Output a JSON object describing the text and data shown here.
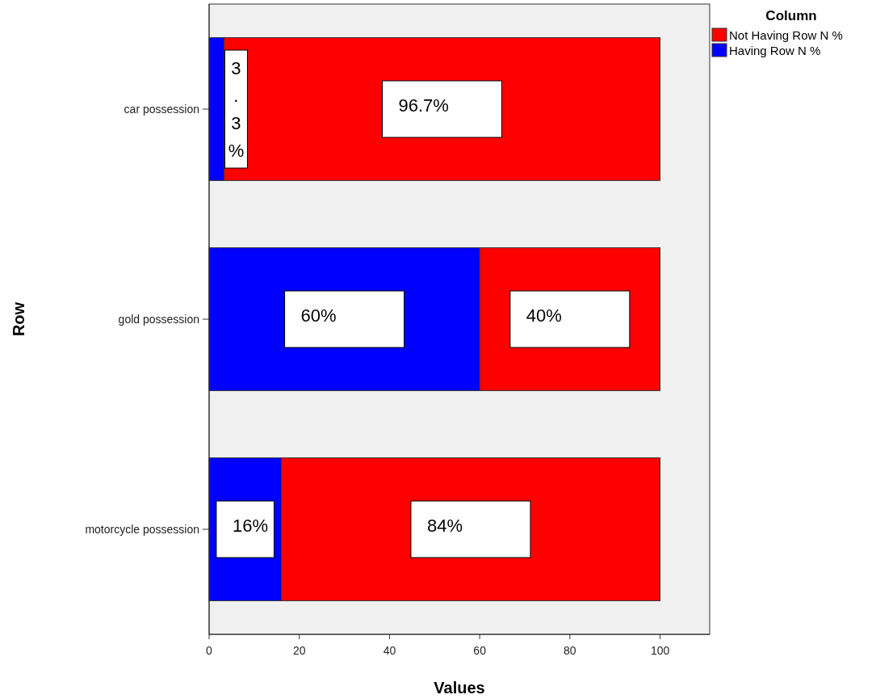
{
  "chart_data": {
    "type": "bar",
    "orientation": "horizontal",
    "stacked": true,
    "xlabel": "Values",
    "ylabel": "Row",
    "legend_title": "Column",
    "legend": "top right",
    "grid": false,
    "categories": [
      "car possession",
      "gold possession",
      "motorcycle possession"
    ],
    "xlim": [
      0,
      111
    ],
    "xticks": [
      0,
      20,
      40,
      60,
      80,
      100
    ],
    "series": [
      {
        "name": "Having Row N %",
        "color": "#0000ff",
        "values": [
          3.3,
          60,
          16
        ],
        "value_labels": [
          "3.3%",
          "60%",
          "16%"
        ]
      },
      {
        "name": "Not Having Row N %",
        "color": "#ff0000",
        "values": [
          96.7,
          40,
          84
        ],
        "value_labels": [
          "96.7%",
          "40%",
          "84%"
        ]
      }
    ]
  }
}
